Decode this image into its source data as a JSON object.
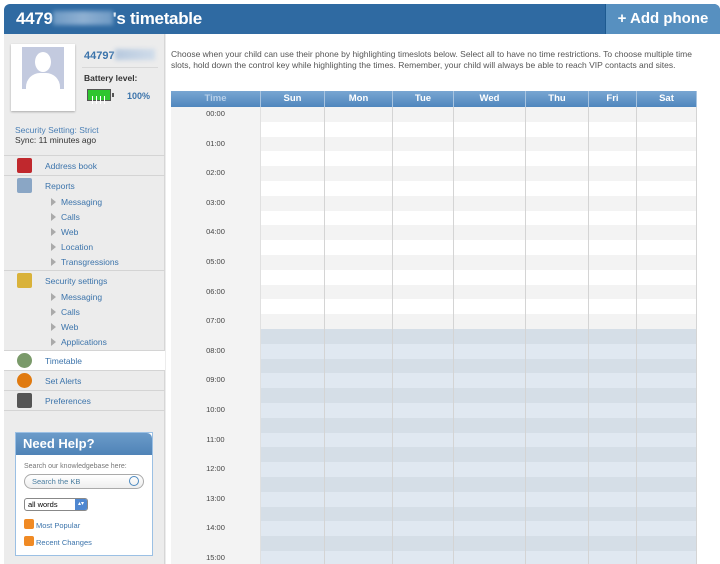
{
  "header": {
    "title_prefix": "4479",
    "title_suffix": "'s timetable",
    "add_phone": "+ Add phone"
  },
  "profile": {
    "number_prefix": "44797",
    "battery_label": "Battery level:",
    "battery_value": "100%",
    "battery_level": 1.0,
    "security_setting": "Security Setting: Strict",
    "sync": "Sync: 11 minutes ago"
  },
  "nav": [
    {
      "label": "Address book",
      "icon": "address-book-icon"
    },
    {
      "label": "Reports",
      "icon": "reports-icon",
      "children": [
        "Messaging",
        "Calls",
        "Web",
        "Location",
        "Transgressions"
      ]
    },
    {
      "label": "Security settings",
      "icon": "lock-icon",
      "children": [
        "Messaging",
        "Calls",
        "Web",
        "Applications"
      ]
    },
    {
      "label": "Timetable",
      "icon": "clock-icon",
      "active": true
    },
    {
      "label": "Set Alerts",
      "icon": "alert-icon"
    },
    {
      "label": "Preferences",
      "icon": "gear-icon"
    }
  ],
  "help": {
    "title": "Need Help?",
    "search_text": "Search our knowledgebase here:",
    "search_placeholder": "Search the KB",
    "select_value": "all words",
    "links": [
      "Most Popular",
      "Recent Changes"
    ]
  },
  "main": {
    "intro": "Choose when your child can use their phone by highlighting timeslots below. Select all to have no time restrictions. To choose multiple time slots, hold down the control key while highlighting the times. Remember, your child will always be able to reach VIP contacts and sites.",
    "columns": [
      "Time",
      "Sun",
      "Mon",
      "Tue",
      "Wed",
      "Thu",
      "Fri",
      "Sat"
    ],
    "times": [
      "00:00",
      "01:00",
      "02:00",
      "03:00",
      "04:00",
      "05:00",
      "06:00",
      "07:00",
      "08:00",
      "09:00",
      "10:00",
      "11:00",
      "12:00",
      "13:00",
      "14:00",
      "15:00"
    ],
    "selected_from": "07:30",
    "colors": {
      "unselected_a": "#f3f3f3",
      "unselected_b": "#ffffff",
      "selected_a": "#e0e8f1",
      "selected_b": "#d5dee7"
    }
  }
}
